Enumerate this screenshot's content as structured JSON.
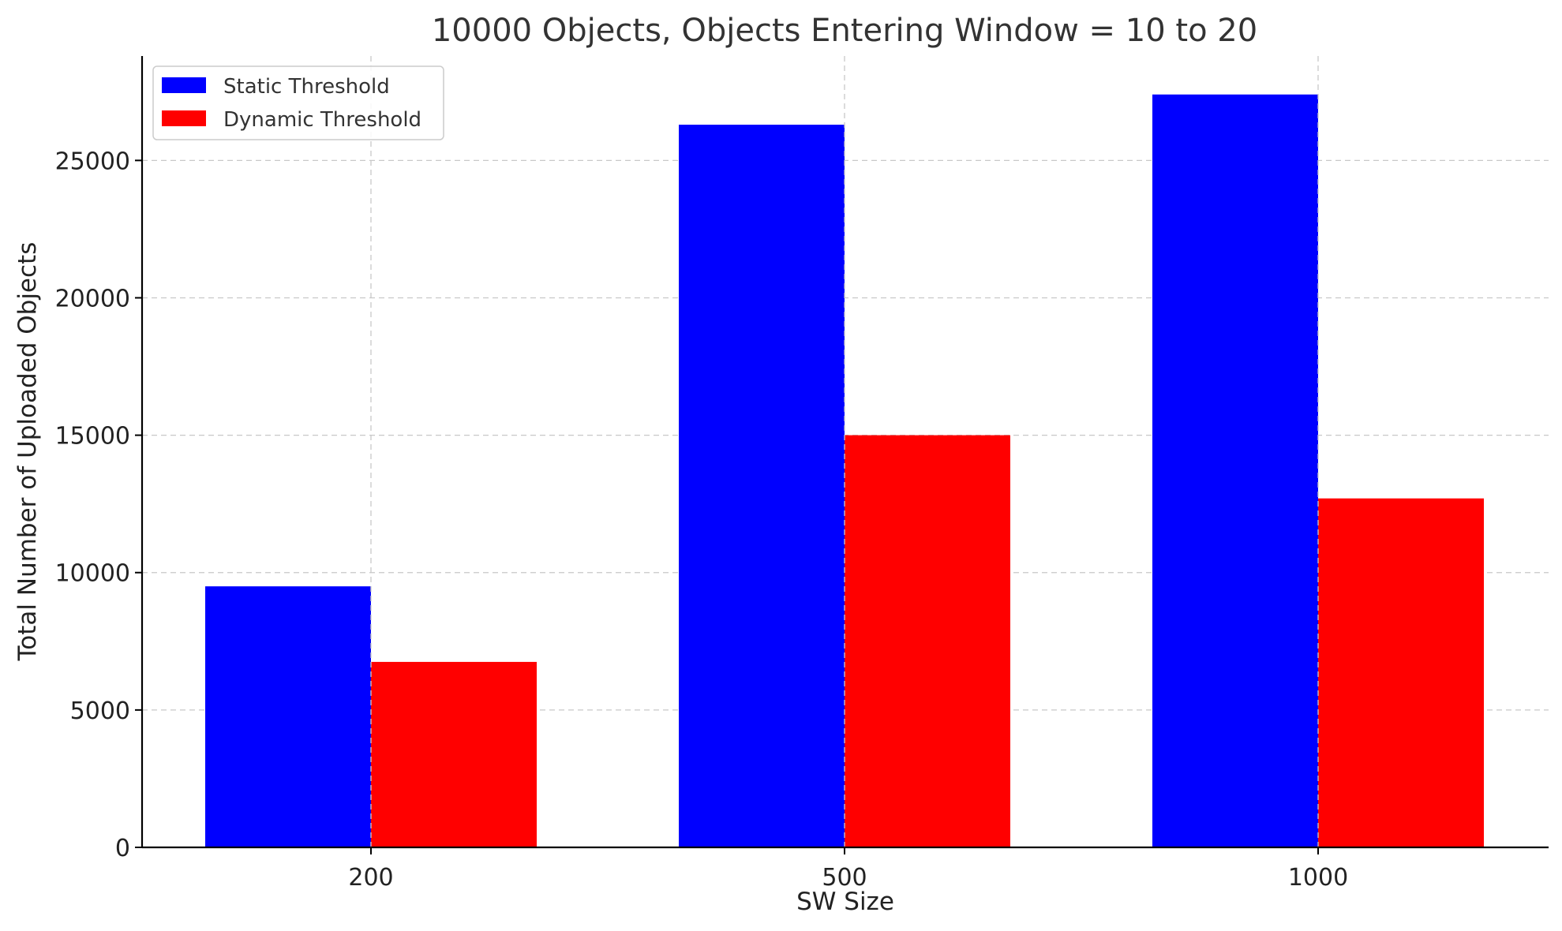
{
  "chart_data": {
    "type": "bar",
    "title": "10000 Objects, Objects Entering Window = 10 to 20",
    "xlabel": "SW Size",
    "ylabel": "Total Number of Uploaded Objects",
    "categories": [
      "200",
      "500",
      "1000"
    ],
    "series": [
      {
        "name": "Static Threshold",
        "color": "#0000ff",
        "values": [
          9500,
          26300,
          27400
        ]
      },
      {
        "name": "Dynamic Threshold",
        "color": "#ff0000",
        "values": [
          6750,
          15000,
          12700
        ]
      }
    ],
    "ylim": [
      0,
      28800
    ],
    "yticks": [
      0,
      5000,
      10000,
      15000,
      20000,
      25000
    ],
    "ytick_labels": [
      "0",
      "5000",
      "10000",
      "15000",
      "20000",
      "25000"
    ],
    "grid": true,
    "legend_position": "top-left"
  }
}
